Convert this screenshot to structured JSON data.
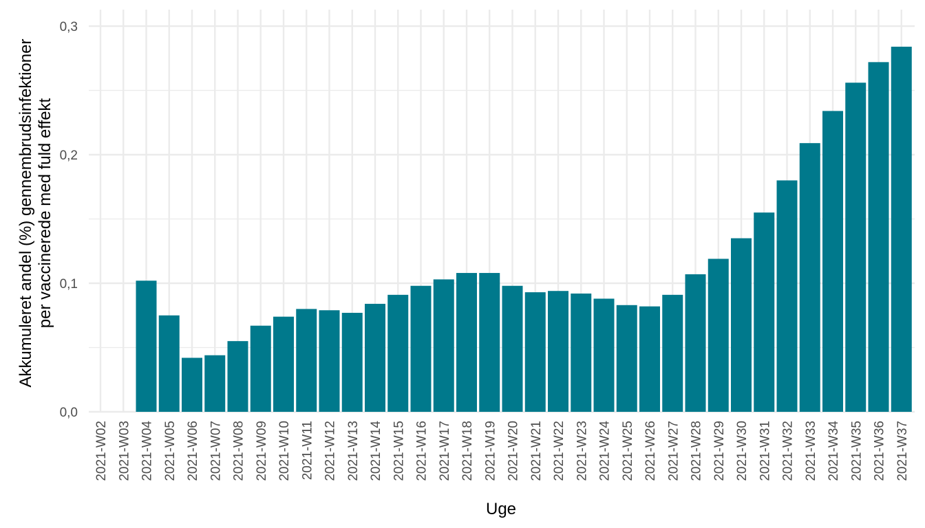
{
  "chart_data": {
    "type": "bar",
    "title": "",
    "xlabel": "Uge",
    "ylabel_lines": [
      "Akkumuleret andel (%) gennembrudsinfektioner",
      "per vaccinerede med fuld effekt"
    ],
    "categories": [
      "2021-W02",
      "2021-W03",
      "2021-W04",
      "2021-W05",
      "2021-W06",
      "2021-W07",
      "2021-W08",
      "2021-W09",
      "2021-W10",
      "2021-W11",
      "2021-W12",
      "2021-W13",
      "2021-W14",
      "2021-W15",
      "2021-W16",
      "2021-W17",
      "2021-W18",
      "2021-W19",
      "2021-W20",
      "2021-W21",
      "2021-W22",
      "2021-W23",
      "2021-W24",
      "2021-W25",
      "2021-W26",
      "2021-W27",
      "2021-W28",
      "2021-W29",
      "2021-W30",
      "2021-W31",
      "2021-W32",
      "2021-W33",
      "2021-W34",
      "2021-W35",
      "2021-W36",
      "2021-W37"
    ],
    "values": [
      0,
      0,
      0.102,
      0.075,
      0.042,
      0.044,
      0.055,
      0.067,
      0.074,
      0.08,
      0.079,
      0.077,
      0.084,
      0.091,
      0.098,
      0.103,
      0.108,
      0.108,
      0.098,
      0.093,
      0.094,
      0.092,
      0.088,
      0.083,
      0.082,
      0.091,
      0.107,
      0.119,
      0.135,
      0.155,
      0.18,
      0.209,
      0.234,
      0.256,
      0.272,
      0.284
    ],
    "ylim": [
      0,
      0.3
    ],
    "yticks": [
      0.0,
      0.1,
      0.2,
      0.3
    ],
    "ytick_labels": [
      "0,0",
      "0,1",
      "0,2",
      "0,3"
    ],
    "grid": true,
    "bar_color": "#00798c",
    "grid_color": "#ebebeb"
  }
}
